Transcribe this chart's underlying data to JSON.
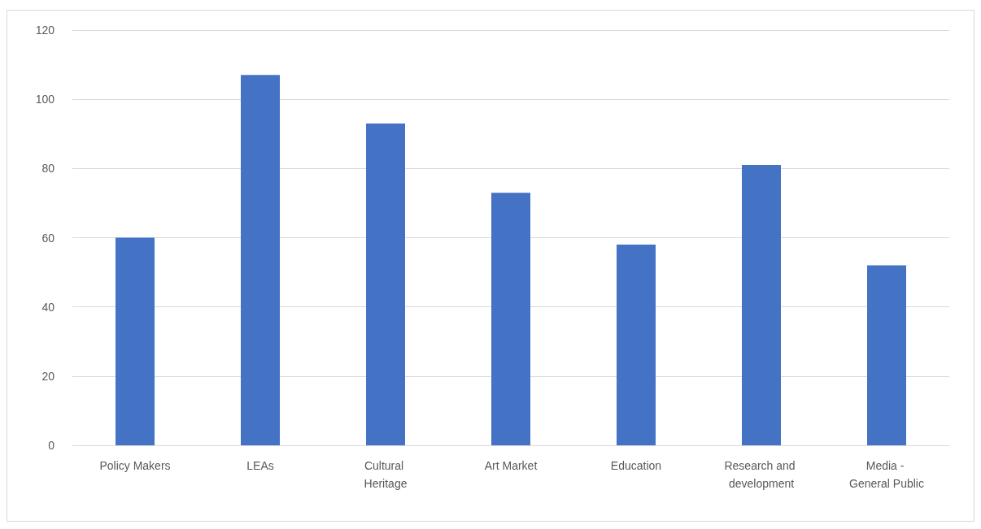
{
  "chart_data": {
    "type": "bar",
    "categories": [
      "Policy Makers",
      "LEAs",
      "Cultural Heritage",
      "Art Market",
      "Education",
      "Research and development",
      "Media - General Public"
    ],
    "values": [
      60,
      107,
      93,
      73,
      58,
      81,
      52
    ],
    "color": "#4472c4",
    "ylim": [
      0,
      120
    ],
    "yticks": [
      0,
      20,
      40,
      60,
      80,
      100,
      120
    ],
    "grid": "y"
  }
}
